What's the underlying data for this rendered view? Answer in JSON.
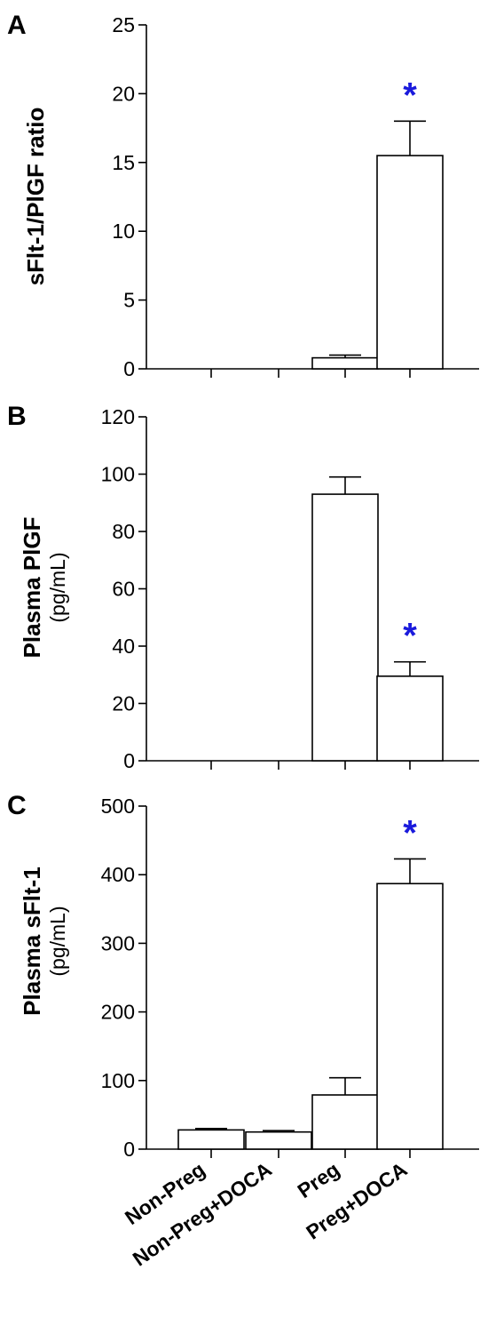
{
  "chart_data": [
    {
      "type": "bar",
      "panel": "A",
      "ylabel": "sFlt-1/PlGF ratio",
      "ylabel_unit": "",
      "ylim": [
        0,
        25
      ],
      "yticks": [
        "0",
        "5",
        "10",
        "15",
        "20",
        "25"
      ],
      "categories": [
        "Non-Preg",
        "Non-Preg+DOCA",
        "Preg",
        "Preg+DOCA"
      ],
      "values": [
        null,
        null,
        0.8,
        15.5
      ],
      "errors": [
        null,
        null,
        0.2,
        2.5
      ],
      "significance": [
        null,
        null,
        null,
        "*"
      ],
      "significance_color": "#1a1adc",
      "grid": false
    },
    {
      "type": "bar",
      "panel": "B",
      "ylabel": "Plasma PlGF",
      "ylabel_unit": "(pg/mL)",
      "ylim": [
        0,
        120
      ],
      "yticks": [
        "0",
        "20",
        "40",
        "60",
        "80",
        "100",
        "120"
      ],
      "categories": [
        "Non-Preg",
        "Non-Preg+DOCA",
        "Preg",
        "Preg+DOCA"
      ],
      "values": [
        null,
        null,
        93,
        29.5
      ],
      "errors": [
        null,
        null,
        6,
        5
      ],
      "significance": [
        null,
        null,
        null,
        "*"
      ],
      "significance_color": "#1a1adc",
      "grid": false
    },
    {
      "type": "bar",
      "panel": "C",
      "ylabel": "Plasma sFlt-1",
      "ylabel_unit": "(pg/mL)",
      "ylim": [
        0,
        500
      ],
      "yticks": [
        "0",
        "100",
        "200",
        "300",
        "400",
        "500"
      ],
      "categories": [
        "Non-Preg",
        "Non-Preg+DOCA",
        "Preg",
        "Preg+DOCA"
      ],
      "values": [
        28,
        25,
        79,
        387
      ],
      "errors": [
        2,
        2,
        25,
        36
      ],
      "significance": [
        null,
        null,
        null,
        "*"
      ],
      "significance_color": "#1a1adc",
      "grid": false
    }
  ],
  "x_category_labels": [
    "Non-Preg",
    "Non-Preg+DOCA",
    "Preg",
    "Preg+DOCA"
  ]
}
